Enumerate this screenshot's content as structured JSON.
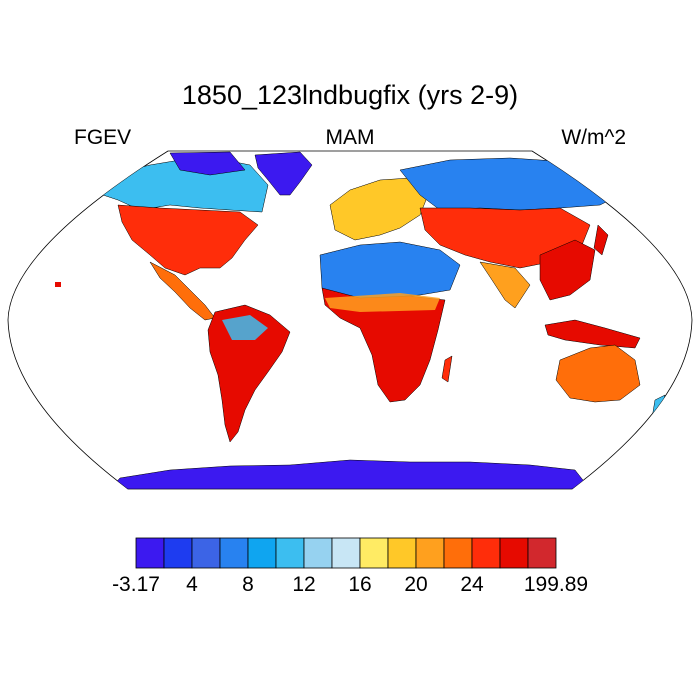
{
  "header": {
    "title": "1850_123lndbugfix (yrs 2-9)",
    "variable": "FGEV",
    "season": "MAM",
    "units": "W/m^2"
  },
  "colorbar": {
    "colors": [
      "#3c19f0",
      "#1e3cf0",
      "#3c64e6",
      "#2882f0",
      "#0fa5f0",
      "#3cbef0",
      "#96d2f0",
      "#c8e6f5",
      "#ffeb64",
      "#ffc828",
      "#ffa01e",
      "#ff6e0a",
      "#ff2d0a",
      "#e60a00",
      "#d2282d"
    ],
    "labels": [
      {
        "text": "-3.17",
        "boundary": 0
      },
      {
        "text": "4",
        "boundary": 2
      },
      {
        "text": "8",
        "boundary": 4
      },
      {
        "text": "12",
        "boundary": 6
      },
      {
        "text": "16",
        "boundary": 8
      },
      {
        "text": "20",
        "boundary": 10
      },
      {
        "text": "24",
        "boundary": 12
      },
      {
        "text": "199.89",
        "boundary": 15
      }
    ]
  },
  "map": {
    "projection": "robinson",
    "ocean_color": "#ffffff",
    "regions": [
      {
        "name": "North America",
        "color": "#ff2d0a"
      },
      {
        "name": "Canada & Alaska",
        "color": "#3cbef0"
      },
      {
        "name": "Greenland",
        "color": "#3c19f0"
      },
      {
        "name": "South America",
        "color": "#e60a00"
      },
      {
        "name": "Sahara",
        "color": "#2882f0"
      },
      {
        "name": "Central Africa",
        "color": "#e60a00"
      },
      {
        "name": "Europe",
        "color": "#ffc828"
      },
      {
        "name": "Siberia",
        "color": "#2882f0"
      },
      {
        "name": "South & East Asia",
        "color": "#ff2d0a"
      },
      {
        "name": "Australia",
        "color": "#ff6e0a"
      },
      {
        "name": "Antarctica",
        "color": "#3c19f0"
      }
    ]
  }
}
